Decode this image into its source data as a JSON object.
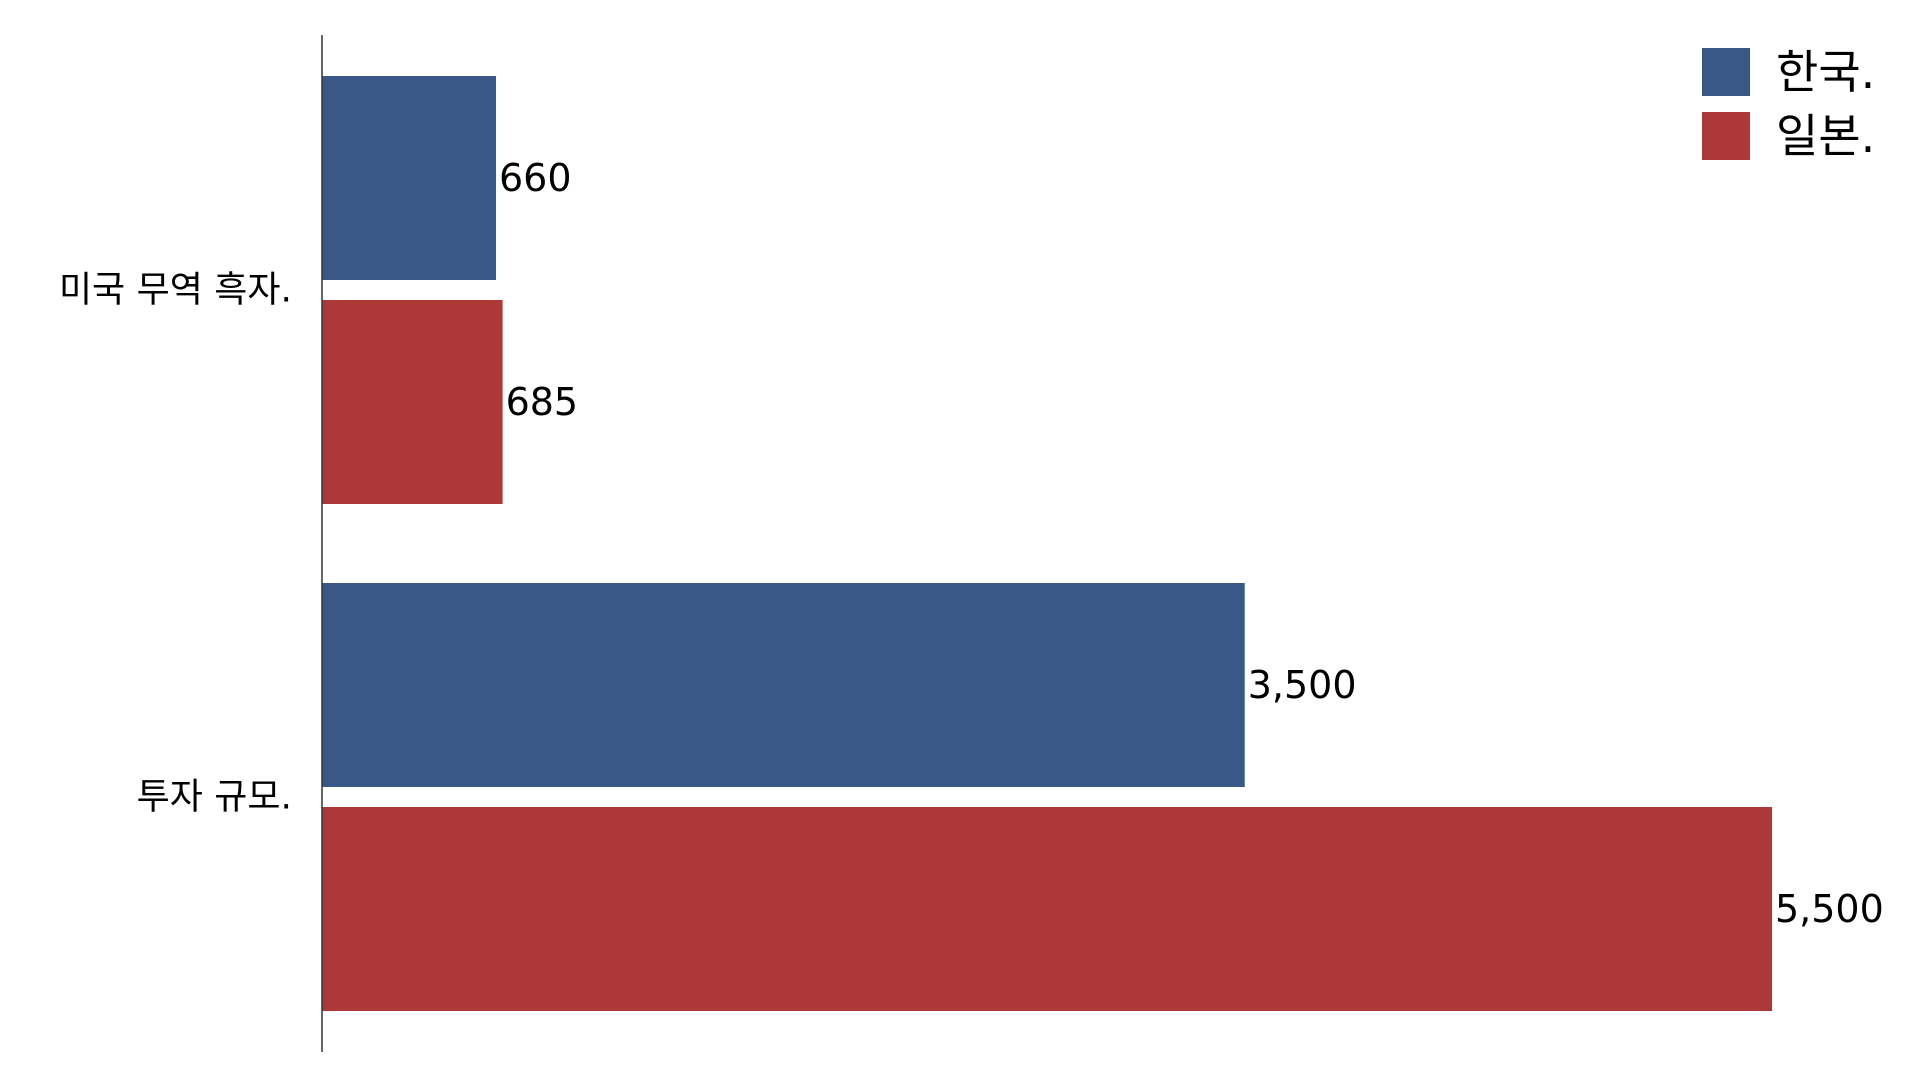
{
  "chart_data": {
    "type": "bar",
    "orientation": "horizontal",
    "categories": [
      "미국 무역 흑자.",
      "투자 규모."
    ],
    "series": [
      {
        "name": "한국.",
        "color": "#3a5887",
        "values": [
          660,
          3500
        ],
        "labels": [
          "660",
          "3,500"
        ]
      },
      {
        "name": "일본.",
        "color": "#ad3838",
        "values": [
          685,
          5500
        ],
        "labels": [
          "685",
          "5,500"
        ]
      }
    ],
    "title": "",
    "xlabel": "",
    "ylabel": "",
    "xlim": [
      0,
      5500
    ],
    "grid": false,
    "legend_position": "top-right"
  }
}
